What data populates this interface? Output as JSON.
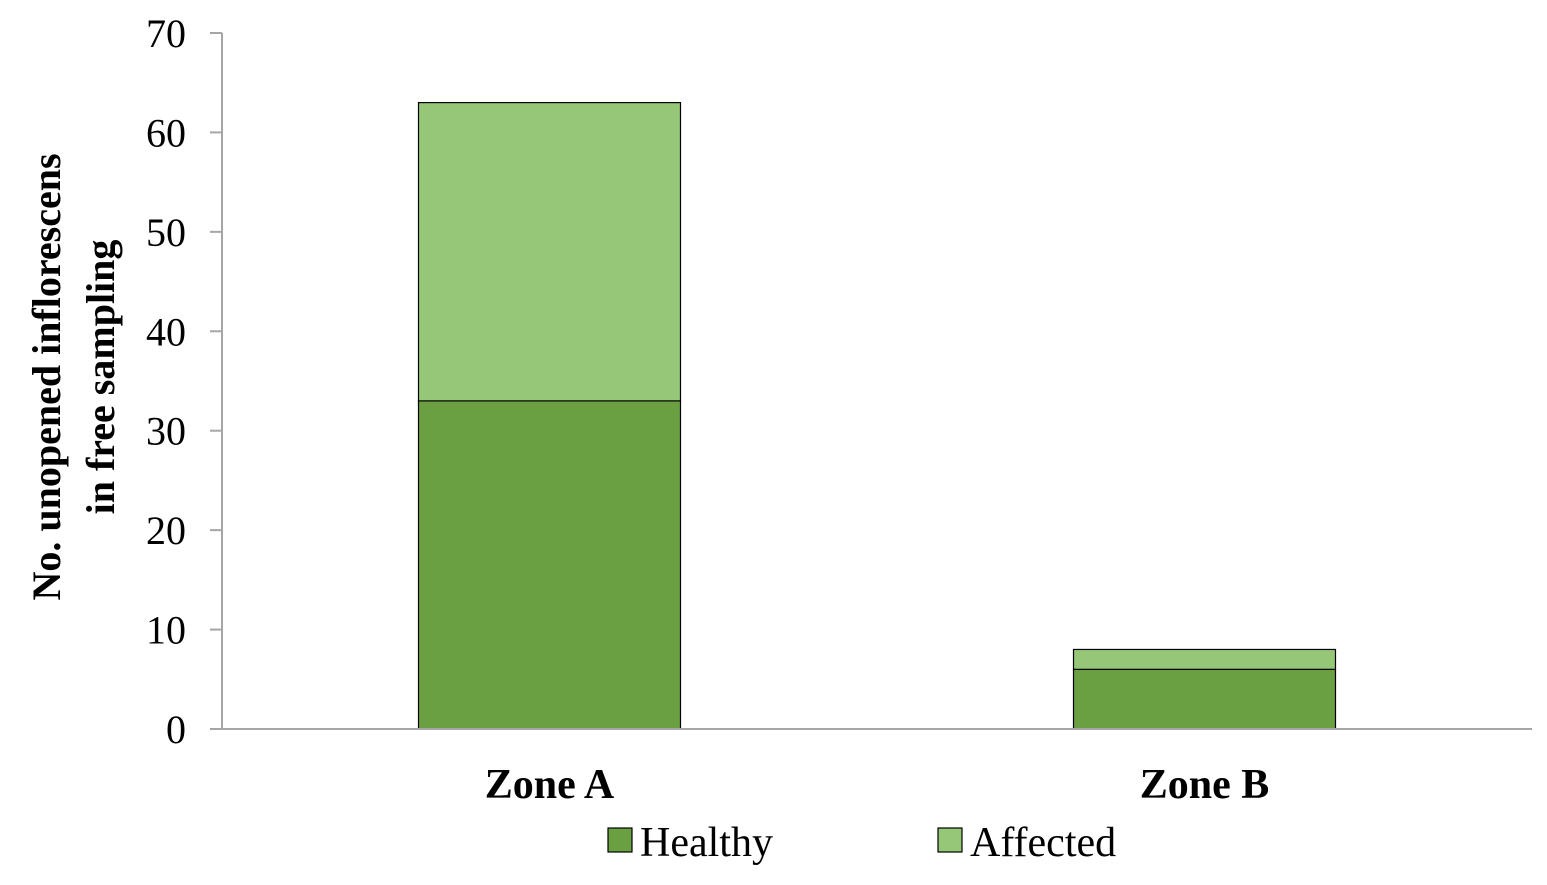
{
  "chart_data": {
    "type": "bar",
    "stacked": true,
    "categories": [
      "Zone A",
      "Zone B"
    ],
    "series": [
      {
        "name": "Healthy",
        "values": [
          33,
          6
        ],
        "color": "#6a9f42"
      },
      {
        "name": "Affected",
        "values": [
          30,
          2
        ],
        "color": "#95c776"
      }
    ],
    "ylabel_lines": [
      "No. unopened inflorescens",
      "in free sampling"
    ],
    "ylim": [
      0,
      70
    ],
    "yticks": [
      0,
      10,
      20,
      30,
      40,
      50,
      60,
      70
    ],
    "grid": false,
    "legend_position": "bottom"
  }
}
